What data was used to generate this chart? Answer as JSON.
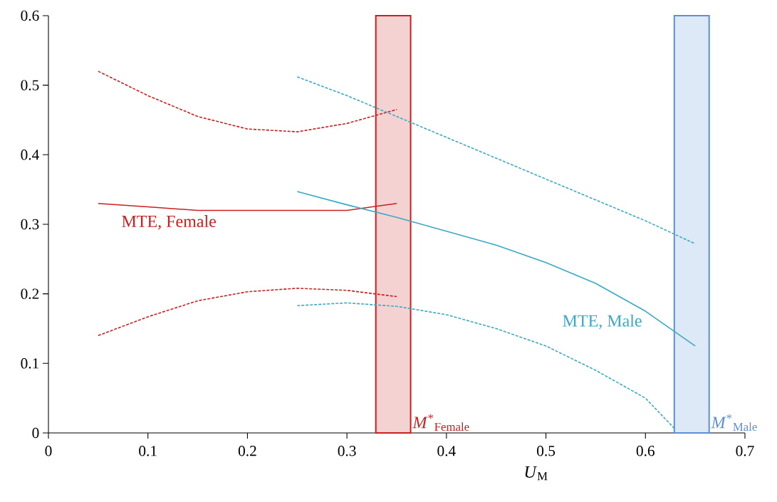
{
  "chart_data": {
    "type": "line",
    "xlabel": "*U*$_{M}$",
    "xlim": [
      0,
      0.7
    ],
    "ylim": [
      0,
      0.6
    ],
    "xticks": [
      0,
      0.1,
      0.2,
      0.3,
      0.4,
      0.5,
      0.6,
      0.7
    ],
    "yticks": [
      0,
      0.1,
      0.2,
      0.3,
      0.4,
      0.5,
      0.6
    ],
    "series": [
      {
        "name": "MTE, Female",
        "color": "#cc1f1f",
        "line_style": "solid",
        "x": [
          0.05,
          0.1,
          0.15,
          0.2,
          0.25,
          0.3,
          0.35
        ],
        "values": [
          0.33,
          0.325,
          0.32,
          0.32,
          0.32,
          0.32,
          0.33
        ]
      },
      {
        "color": "#cc1f1f",
        "line_style": "dashed",
        "x": [
          0.05,
          0.1,
          0.15,
          0.2,
          0.25,
          0.3,
          0.35
        ],
        "values": [
          0.52,
          0.485,
          0.455,
          0.437,
          0.433,
          0.445,
          0.465
        ]
      },
      {
        "color": "#cc1f1f",
        "line_style": "dashed",
        "x": [
          0.05,
          0.1,
          0.15,
          0.2,
          0.25,
          0.3,
          0.35
        ],
        "values": [
          0.14,
          0.167,
          0.19,
          0.203,
          0.208,
          0.205,
          0.196
        ]
      },
      {
        "name": "MTE, Male",
        "color": "#3aa9c8",
        "line_style": "solid",
        "x": [
          0.25,
          0.3,
          0.35,
          0.4,
          0.45,
          0.5,
          0.55,
          0.6,
          0.65
        ],
        "values": [
          0.347,
          0.328,
          0.31,
          0.29,
          0.27,
          0.245,
          0.215,
          0.175,
          0.125
        ]
      },
      {
        "color": "#3aa9c8",
        "line_style": "dashed",
        "x": [
          0.25,
          0.3,
          0.35,
          0.4,
          0.45,
          0.5,
          0.55,
          0.6,
          0.65
        ],
        "values": [
          0.512,
          0.485,
          0.455,
          0.425,
          0.395,
          0.365,
          0.335,
          0.305,
          0.272
        ]
      },
      {
        "color": "#3aa9c8",
        "line_style": "dashed",
        "x": [
          0.25,
          0.3,
          0.35,
          0.4,
          0.45,
          0.5,
          0.55,
          0.6,
          0.63
        ],
        "values": [
          0.183,
          0.187,
          0.182,
          0.17,
          0.15,
          0.125,
          0.09,
          0.05,
          0.005
        ]
      }
    ],
    "bands": [
      {
        "axis": "x",
        "from": 0.329,
        "to": 0.364,
        "label": "*M*$^{*}$$_{Female}$",
        "color": "#cc1f1f"
      },
      {
        "axis": "x",
        "from": 0.629,
        "to": 0.664,
        "label": "*M*$^{*}$$_{Male}$",
        "color": "#5b8fd6"
      }
    ]
  }
}
